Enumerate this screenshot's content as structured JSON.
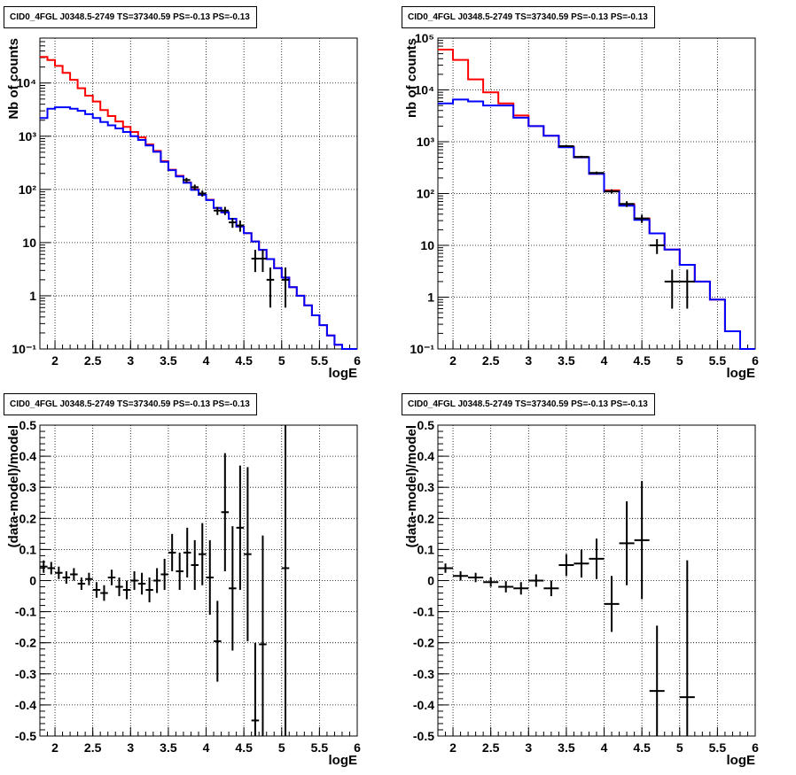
{
  "chart_data": [
    {
      "type": "line",
      "title": "CID0_4FGL J0348.5-2749 TS=37340.59 PS=-0.13 PS=-0.13",
      "xlabel": "logE",
      "ylabel": "Nb of counts",
      "xlim": [
        1.8,
        6.0
      ],
      "ylim": [
        0.1,
        70000
      ],
      "yscale": "log",
      "grid": true,
      "xticks": [
        "2",
        "2.5",
        "3",
        "3.5",
        "4",
        "4.5",
        "5",
        "5.5",
        "6"
      ],
      "yticks": [
        "10⁻¹",
        "1",
        "10",
        "10²",
        "10³",
        "10⁴"
      ],
      "bin_edges": [
        1.8,
        1.9,
        2.0,
        2.1,
        2.2,
        2.3,
        2.4,
        2.5,
        2.6,
        2.7,
        2.8,
        2.9,
        3.0,
        3.1,
        3.2,
        3.3,
        3.4,
        3.5,
        3.6,
        3.7,
        3.8,
        3.9,
        4.0,
        4.1,
        4.2,
        4.3,
        4.4,
        4.5,
        4.6,
        4.7,
        4.8,
        4.9,
        5.0,
        5.1,
        5.2,
        5.3,
        5.4,
        5.5,
        5.6,
        5.7,
        5.8,
        5.9,
        6.0
      ],
      "series": [
        {
          "color": "#ff0000",
          "values": [
            31000,
            27000,
            21000,
            15500,
            11500,
            8000,
            5800,
            4500,
            3100,
            2400,
            1900,
            1500,
            1200,
            950,
            700,
            530,
            340,
            235,
            180,
            135,
            100,
            80,
            64,
            45,
            37,
            28,
            20,
            15,
            10.5,
            7.3,
            4.9,
            3.3,
            2.2,
            1.45,
            1.0,
            0.66,
            0.43,
            0.28,
            0.18,
            0.12,
            0.085,
            0.06
          ]
        },
        {
          "color": "#0000ff",
          "values": [
            2200,
            3300,
            3500,
            3500,
            3300,
            3000,
            2600,
            2200,
            1850,
            1600,
            1400,
            1200,
            1000,
            850,
            670,
            510,
            330,
            230,
            175,
            133,
            98,
            79,
            63,
            45,
            37,
            28,
            20,
            15,
            10.5,
            7.3,
            4.9,
            3.3,
            2.2,
            1.45,
            1.0,
            0.66,
            0.43,
            0.28,
            0.18,
            0.12,
            0.085,
            0.06
          ]
        }
      ],
      "points": [
        {
          "x": 3.74,
          "y": 150,
          "lo": 135,
          "hi": 165
        },
        {
          "x": 3.85,
          "y": 110,
          "lo": 97,
          "hi": 123
        },
        {
          "x": 3.95,
          "y": 84,
          "lo": 73,
          "hi": 95
        },
        {
          "x": 4.15,
          "y": 40,
          "lo": 33,
          "hi": 47
        },
        {
          "x": 4.25,
          "y": 40,
          "lo": 33,
          "hi": 47
        },
        {
          "x": 4.35,
          "y": 24,
          "lo": 19,
          "hi": 29
        },
        {
          "x": 4.45,
          "y": 21,
          "lo": 16,
          "hi": 26
        },
        {
          "x": 4.65,
          "y": 5,
          "lo": 2.8,
          "hi": 7.3
        },
        {
          "x": 4.75,
          "y": 5,
          "lo": 2.8,
          "hi": 7.3
        },
        {
          "x": 4.85,
          "y": 2,
          "lo": 0.6,
          "hi": 3.4
        },
        {
          "x": 5.05,
          "y": 2,
          "lo": 0.6,
          "hi": 3.4
        }
      ]
    },
    {
      "type": "line",
      "title": "CID0_4FGL J0348.5-2749 TS=37340.59 PS=-0.13 PS=-0.13",
      "xlabel": "logE",
      "ylabel": "nb of counts",
      "xlim": [
        1.8,
        6.0
      ],
      "ylim": [
        0.1,
        100000
      ],
      "yscale": "log",
      "grid": true,
      "xticks": [
        "2",
        "2.5",
        "3",
        "3.5",
        "4",
        "4.5",
        "5",
        "5.5",
        "6"
      ],
      "yticks": [
        "10⁻¹",
        "1",
        "10",
        "10²",
        "10³",
        "10⁴",
        "10⁵"
      ],
      "bin_edges": [
        1.8,
        2.0,
        2.2,
        2.4,
        2.6,
        2.8,
        3.0,
        3.2,
        3.4,
        3.6,
        3.8,
        4.0,
        4.2,
        4.4,
        4.6,
        4.8,
        5.0,
        5.2,
        5.4,
        5.6,
        5.8,
        6.0
      ],
      "series": [
        {
          "color": "#ff0000",
          "values": [
            60000,
            38000,
            16000,
            9000,
            5500,
            3200,
            2000,
            1300,
            800,
            500,
            240,
            115,
            62,
            33,
            17,
            8.3,
            4.2,
            2.0,
            0.9,
            0.22,
            0.1
          ]
        },
        {
          "color": "#0000ff",
          "values": [
            5500,
            6500,
            6000,
            5000,
            5000,
            2900,
            2000,
            1300,
            780,
            500,
            240,
            110,
            58,
            31,
            17,
            8.3,
            4.2,
            2.0,
            0.9,
            0.22,
            0.1
          ]
        }
      ],
      "points": [
        {
          "x": 3.5,
          "y": 820,
          "lo": 790,
          "hi": 850
        },
        {
          "x": 3.7,
          "y": 510,
          "lo": 485,
          "hi": 535
        },
        {
          "x": 3.9,
          "y": 250,
          "lo": 235,
          "hi": 265
        },
        {
          "x": 4.1,
          "y": 110,
          "lo": 100,
          "hi": 120
        },
        {
          "x": 4.3,
          "y": 63,
          "lo": 55,
          "hi": 71
        },
        {
          "x": 4.5,
          "y": 33,
          "lo": 27,
          "hi": 39
        },
        {
          "x": 4.7,
          "y": 10,
          "lo": 6.8,
          "hi": 13.2
        },
        {
          "x": 4.9,
          "y": 2,
          "lo": 0.6,
          "hi": 3.4
        },
        {
          "x": 5.1,
          "y": 2,
          "lo": 0.6,
          "hi": 3.4
        }
      ]
    },
    {
      "type": "scatter",
      "title": "CID0_4FGL J0348.5-2749 TS=37340.59 PS=-0.13 PS=-0.13",
      "xlabel": "logE",
      "ylabel": "(data-model)/model",
      "xlim": [
        1.8,
        6.0
      ],
      "ylim": [
        -0.5,
        0.5
      ],
      "grid": true,
      "xticks": [
        "2",
        "2.5",
        "3",
        "3.5",
        "4",
        "4.5",
        "5",
        "5.5",
        "6"
      ],
      "yticks": [
        "-0.5",
        "-0.4",
        "-0.3",
        "-0.2",
        "-0.1",
        "0",
        "0.1",
        "0.2",
        "0.3",
        "0.4",
        "0.5"
      ],
      "xerr": 0.05,
      "points": [
        {
          "x": 1.85,
          "y": 0.045,
          "e": 0.02
        },
        {
          "x": 1.95,
          "y": 0.04,
          "e": 0.02
        },
        {
          "x": 2.05,
          "y": 0.025,
          "e": 0.02
        },
        {
          "x": 2.15,
          "y": 0.01,
          "e": 0.02
        },
        {
          "x": 2.25,
          "y": 0.02,
          "e": 0.02
        },
        {
          "x": 2.35,
          "y": -0.01,
          "e": 0.02
        },
        {
          "x": 2.45,
          "y": 0.005,
          "e": 0.02
        },
        {
          "x": 2.55,
          "y": -0.03,
          "e": 0.025
        },
        {
          "x": 2.65,
          "y": -0.04,
          "e": 0.025
        },
        {
          "x": 2.75,
          "y": 0.01,
          "e": 0.025
        },
        {
          "x": 2.85,
          "y": -0.02,
          "e": 0.03
        },
        {
          "x": 2.95,
          "y": -0.03,
          "e": 0.03
        },
        {
          "x": 3.05,
          "y": 0.0,
          "e": 0.03
        },
        {
          "x": 3.15,
          "y": -0.01,
          "e": 0.035
        },
        {
          "x": 3.25,
          "y": -0.03,
          "e": 0.04
        },
        {
          "x": 3.35,
          "y": 0.0,
          "e": 0.04
        },
        {
          "x": 3.45,
          "y": 0.02,
          "e": 0.05
        },
        {
          "x": 3.55,
          "y": 0.09,
          "e": 0.06
        },
        {
          "x": 3.65,
          "y": 0.03,
          "e": 0.06
        },
        {
          "x": 3.75,
          "y": 0.09,
          "e": 0.08
        },
        {
          "x": 3.85,
          "y": 0.05,
          "e": 0.08
        },
        {
          "x": 3.95,
          "y": 0.085,
          "e": 0.1
        },
        {
          "x": 4.05,
          "y": 0.01,
          "e": 0.12
        },
        {
          "x": 4.15,
          "y": -0.195,
          "e": 0.13
        },
        {
          "x": 4.25,
          "y": 0.22,
          "e": 0.19
        },
        {
          "x": 4.35,
          "y": -0.025,
          "e": 0.2
        },
        {
          "x": 4.45,
          "y": 0.17,
          "e": 0.2
        },
        {
          "x": 4.55,
          "y": 0.085,
          "e": 0.28
        },
        {
          "x": 4.65,
          "y": -0.45,
          "e": 0.25
        },
        {
          "x": 4.75,
          "y": -0.205,
          "e": 0.35
        },
        {
          "x": 5.05,
          "y": 0.04,
          "e": 0.8
        }
      ]
    },
    {
      "type": "scatter",
      "title": "CID0_4FGL J0348.5-2749 TS=37340.59 PS=-0.13 PS=-0.13",
      "xlabel": "logE",
      "ylabel": "(data-model)/model",
      "xlim": [
        1.8,
        6.0
      ],
      "ylim": [
        -0.5,
        0.5
      ],
      "grid": true,
      "xticks": [
        "2",
        "2.5",
        "3",
        "3.5",
        "4",
        "4.5",
        "5",
        "5.5",
        "6"
      ],
      "yticks": [
        "-0.5",
        "-0.4",
        "-0.3",
        "-0.2",
        "-0.1",
        "0",
        "0.1",
        "0.2",
        "0.3",
        "0.4",
        "0.5"
      ],
      "xerr": 0.1,
      "points": [
        {
          "x": 1.9,
          "y": 0.04,
          "e": 0.015
        },
        {
          "x": 2.1,
          "y": 0.015,
          "e": 0.015
        },
        {
          "x": 2.3,
          "y": 0.01,
          "e": 0.015
        },
        {
          "x": 2.5,
          "y": -0.005,
          "e": 0.015
        },
        {
          "x": 2.7,
          "y": -0.02,
          "e": 0.018
        },
        {
          "x": 2.9,
          "y": -0.025,
          "e": 0.02
        },
        {
          "x": 3.1,
          "y": 0.0,
          "e": 0.02
        },
        {
          "x": 3.3,
          "y": -0.025,
          "e": 0.025
        },
        {
          "x": 3.5,
          "y": 0.05,
          "e": 0.035
        },
        {
          "x": 3.7,
          "y": 0.055,
          "e": 0.045
        },
        {
          "x": 3.9,
          "y": 0.07,
          "e": 0.065
        },
        {
          "x": 4.1,
          "y": -0.075,
          "e": 0.09
        },
        {
          "x": 4.3,
          "y": 0.12,
          "e": 0.135
        },
        {
          "x": 4.5,
          "y": 0.13,
          "e": 0.19
        },
        {
          "x": 4.7,
          "y": -0.355,
          "e": 0.21
        },
        {
          "x": 5.1,
          "y": -0.375,
          "e": 0.44
        }
      ]
    }
  ]
}
